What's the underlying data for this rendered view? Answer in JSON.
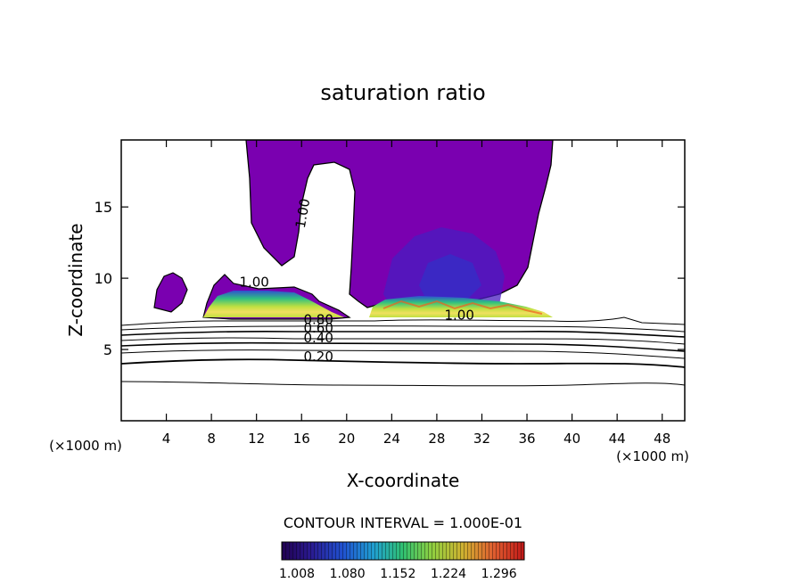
{
  "chart_data": {
    "type": "contour",
    "title": "saturation ratio",
    "xlabel": "X-coordinate",
    "ylabel": "Z-coordinate",
    "xunit_left": "(×1000 m)",
    "xunit_right": "(×1000 m)",
    "xlim": [
      0,
      50
    ],
    "ylim": [
      0,
      19.7
    ],
    "xticks": [
      4,
      8,
      12,
      16,
      20,
      24,
      28,
      32,
      36,
      40,
      44,
      48
    ],
    "yticks": [
      5,
      10,
      15
    ],
    "contour_labels": [
      {
        "text": "1.00",
        "x": 16.5,
        "y": 14.5,
        "rotate": true
      },
      {
        "text": "1.00",
        "x": 11.8,
        "y": 9.4
      },
      {
        "text": "1.00",
        "x": 30.0,
        "y": 7.1
      },
      {
        "text": "0.80",
        "x": 17.5,
        "y": 6.8
      },
      {
        "text": "0.60",
        "x": 17.5,
        "y": 6.2
      },
      {
        "text": "0.40",
        "x": 17.5,
        "y": 5.5
      },
      {
        "text": "0.20",
        "x": 17.5,
        "y": 4.2
      }
    ],
    "contour_interval_text": "CONTOUR INTERVAL = 1.000E-01",
    "colorbar": {
      "ticks": [
        "1.008",
        "1.080",
        "1.152",
        "1.224",
        "1.296"
      ],
      "colors": [
        "#1a0060",
        "#3040c0",
        "#20a0e0",
        "#30d080",
        "#b0e040",
        "#f0d030",
        "#f06020",
        "#e01010"
      ]
    },
    "colors": {
      "fill_sat": "#7a00b0",
      "fill_deep": "#4020c0"
    }
  }
}
